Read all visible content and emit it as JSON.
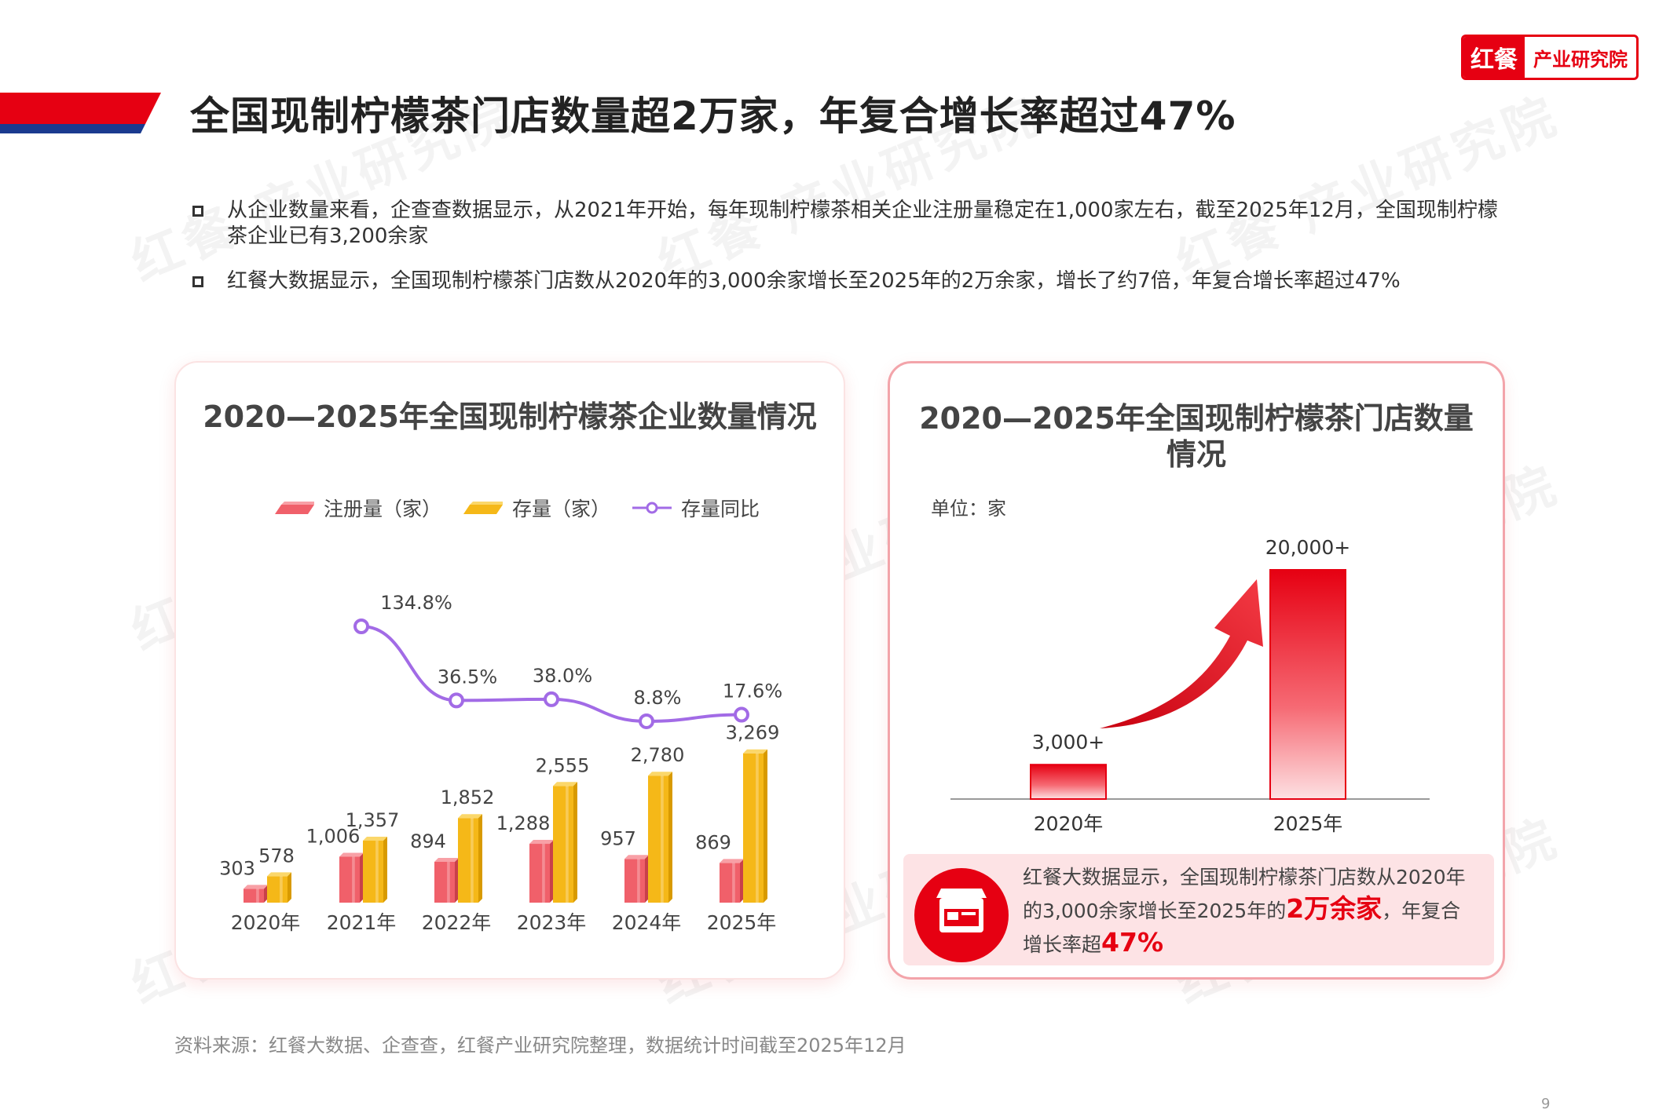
{
  "header": {
    "title": "全国现制柠檬茶门店数量超2万家，年复合增长率超过47%",
    "logo_main": "红餐",
    "logo_sub": "产业研究院",
    "watermark": "红餐 产业研究院"
  },
  "bullets": [
    "从企业数量来看，企查查数据显示，从2021年开始，每年现制柠檬茶相关企业注册量稳定在1,000家左右，截至2025年12月，全国现制柠檬茶企业已有3,200余家",
    "红餐大数据显示，全国现制柠檬茶门店数从2020年的3,000余家增长至2025年的2万余家，增长了约7倍，年复合增长率超过47%"
  ],
  "chart_data": [
    {
      "type": "bar",
      "title": "2020—2025年全国现制柠檬茶企业数量情况",
      "categories": [
        "2020年",
        "2021年",
        "2022年",
        "2023年",
        "2024年",
        "2025年"
      ],
      "series": [
        {
          "name": "注册量（家）",
          "type": "bar",
          "values": [
            303,
            1006,
            894,
            1288,
            957,
            869
          ],
          "labels": [
            "303",
            "1,006",
            "894",
            "1,288",
            "957",
            "869"
          ],
          "color": "#f0606a"
        },
        {
          "name": "存量（家）",
          "type": "bar",
          "values": [
            578,
            1357,
            1852,
            2555,
            2780,
            3269
          ],
          "labels": [
            "578",
            "1,357",
            "1,852",
            "2,555",
            "2,780",
            "3,269"
          ],
          "color": "#f5b818"
        },
        {
          "name": "存量同比",
          "type": "line",
          "x": [
            "2021年",
            "2022年",
            "2023年",
            "2024年",
            "2025年"
          ],
          "values": [
            134.8,
            36.5,
            38.0,
            8.8,
            17.6
          ],
          "labels": [
            "134.8%",
            "36.5%",
            "38.0%",
            "8.8%",
            "17.6%"
          ],
          "color": "#a26be6"
        }
      ],
      "legend": "top"
    },
    {
      "type": "bar",
      "title": "2020—2025年全国现制柠檬茶门店数量情况",
      "unit_label": "单位：家",
      "categories": [
        "2020年",
        "2025年"
      ],
      "values": [
        3000,
        20000
      ],
      "labels": [
        "3,000+",
        "20,000+"
      ],
      "color": "#e60012"
    }
  ],
  "note": {
    "part1": "红餐大数据显示，全国现制柠檬茶门店数从2020年的3,000余家增长至2025年的",
    "hl1": "2万余家",
    "part2": "，年复合增长率超",
    "hl2": "47%"
  },
  "source": "资料来源：红餐大数据、企查查，红餐产业研究院整理，数据统计时间截至2025年12月",
  "page_number": "9"
}
